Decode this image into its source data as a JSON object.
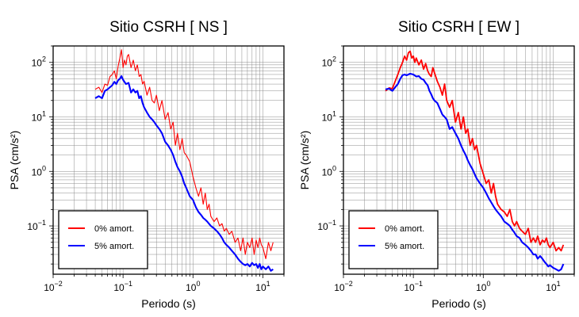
{
  "chart_data": [
    {
      "type": "line",
      "title": "Sitio CSRH [ NS ]",
      "xlabel": "Periodo (s)",
      "ylabel": "PSA (cm/s²)",
      "xscale": "log",
      "yscale": "log",
      "xlim": [
        0.01,
        20
      ],
      "ylim": [
        0.013,
        200
      ],
      "x_ticks": [
        {
          "value": 0.01,
          "base": "10",
          "exp": "−2"
        },
        {
          "value": 0.1,
          "base": "10",
          "exp": "−1"
        },
        {
          "value": 1,
          "base": "10",
          "exp": "0"
        },
        {
          "value": 10,
          "base": "10",
          "exp": "1"
        }
      ],
      "y_ticks": [
        {
          "value": 0.1,
          "base": "10",
          "exp": "−1"
        },
        {
          "value": 1,
          "base": "10",
          "exp": "0"
        },
        {
          "value": 10,
          "base": "10",
          "exp": "1"
        },
        {
          "value": 100,
          "base": "10",
          "exp": "2"
        }
      ],
      "grid": true,
      "legend_position": "bottom-left",
      "series": [
        {
          "name": "0% amort.",
          "color": "#ff0000",
          "x": [
            0.04,
            0.045,
            0.05,
            0.055,
            0.06,
            0.065,
            0.07,
            0.075,
            0.08,
            0.085,
            0.09,
            0.095,
            0.1,
            0.105,
            0.11,
            0.115,
            0.12,
            0.13,
            0.14,
            0.15,
            0.16,
            0.17,
            0.18,
            0.19,
            0.2,
            0.22,
            0.24,
            0.26,
            0.28,
            0.3,
            0.33,
            0.36,
            0.4,
            0.44,
            0.48,
            0.52,
            0.56,
            0.6,
            0.65,
            0.7,
            0.75,
            0.8,
            0.9,
            1.0,
            1.1,
            1.2,
            1.3,
            1.4,
            1.5,
            1.6,
            1.7,
            1.8,
            2.0,
            2.2,
            2.4,
            2.6,
            2.8,
            3.0,
            3.3,
            3.6,
            4.0,
            4.4,
            4.8,
            5.2,
            5.6,
            6.0,
            6.5,
            7.0,
            7.5,
            8.0,
            8.5,
            9.0,
            9.5,
            10.0,
            11.0,
            12.0,
            13.0,
            14.0
          ],
          "y": [
            32,
            35,
            28,
            40,
            38,
            55,
            60,
            70,
            50,
            85,
            120,
            170,
            80,
            110,
            90,
            130,
            140,
            80,
            110,
            70,
            90,
            55,
            60,
            40,
            45,
            25,
            35,
            20,
            18,
            25,
            13,
            20,
            9,
            12,
            6,
            8,
            3,
            5,
            2.5,
            4,
            2.2,
            2.0,
            1.5,
            0.8,
            0.5,
            0.35,
            0.5,
            0.25,
            0.4,
            0.2,
            0.25,
            0.15,
            0.12,
            0.14,
            0.1,
            0.11,
            0.08,
            0.09,
            0.07,
            0.08,
            0.05,
            0.06,
            0.035,
            0.06,
            0.03,
            0.05,
            0.04,
            0.06,
            0.03,
            0.055,
            0.04,
            0.06,
            0.045,
            0.04,
            0.025,
            0.05,
            0.035,
            0.05
          ]
        },
        {
          "name": "5% amort.",
          "color": "#0000ff",
          "x": [
            0.04,
            0.045,
            0.05,
            0.055,
            0.06,
            0.065,
            0.07,
            0.075,
            0.08,
            0.085,
            0.09,
            0.095,
            0.1,
            0.11,
            0.12,
            0.13,
            0.14,
            0.15,
            0.16,
            0.17,
            0.18,
            0.19,
            0.2,
            0.22,
            0.24,
            0.26,
            0.28,
            0.3,
            0.33,
            0.36,
            0.4,
            0.44,
            0.48,
            0.52,
            0.56,
            0.6,
            0.65,
            0.7,
            0.75,
            0.8,
            0.9,
            1.0,
            1.1,
            1.2,
            1.3,
            1.4,
            1.5,
            1.6,
            1.8,
            2.0,
            2.2,
            2.4,
            2.6,
            2.8,
            3.0,
            3.3,
            3.6,
            4.0,
            4.4,
            4.8,
            5.2,
            5.6,
            6.0,
            6.5,
            7.0,
            7.5,
            8.0,
            8.5,
            9.0,
            9.5,
            10.0,
            11.0,
            12.0,
            13.0,
            14.0
          ],
          "y": [
            22,
            24,
            22,
            30,
            32,
            35,
            38,
            44,
            40,
            47,
            50,
            56,
            48,
            40,
            42,
            28,
            32,
            28,
            30,
            22,
            24,
            18,
            15,
            12,
            10,
            9,
            8,
            7,
            6,
            5,
            3.5,
            3,
            2.5,
            2.0,
            1.5,
            1.2,
            1.0,
            0.8,
            0.6,
            0.5,
            0.35,
            0.3,
            0.22,
            0.18,
            0.16,
            0.14,
            0.13,
            0.12,
            0.1,
            0.09,
            0.08,
            0.07,
            0.06,
            0.05,
            0.045,
            0.04,
            0.035,
            0.03,
            0.025,
            0.022,
            0.02,
            0.019,
            0.02,
            0.018,
            0.021,
            0.019,
            0.02,
            0.017,
            0.02,
            0.016,
            0.018,
            0.016,
            0.018,
            0.015,
            0.016
          ]
        }
      ]
    },
    {
      "type": "line",
      "title": "Sitio CSRH [ EW ]",
      "xlabel": "Periodo (s)",
      "ylabel": "PSA (cm/s²)",
      "xscale": "log",
      "yscale": "log",
      "xlim": [
        0.01,
        20
      ],
      "ylim": [
        0.013,
        200
      ],
      "x_ticks": [
        {
          "value": 0.01,
          "base": "10",
          "exp": "−2"
        },
        {
          "value": 0.1,
          "base": "10",
          "exp": "−1"
        },
        {
          "value": 1,
          "base": "10",
          "exp": "0"
        },
        {
          "value": 10,
          "base": "10",
          "exp": "1"
        }
      ],
      "y_ticks": [
        {
          "value": 0.1,
          "base": "10",
          "exp": "−1"
        },
        {
          "value": 1,
          "base": "10",
          "exp": "0"
        },
        {
          "value": 10,
          "base": "10",
          "exp": "1"
        },
        {
          "value": 100,
          "base": "10",
          "exp": "2"
        }
      ],
      "grid": true,
      "legend_position": "bottom-left",
      "series": [
        {
          "name": "0% amort.",
          "color": "#ff0000",
          "x": [
            0.04,
            0.045,
            0.05,
            0.055,
            0.06,
            0.065,
            0.07,
            0.075,
            0.08,
            0.085,
            0.09,
            0.095,
            0.1,
            0.105,
            0.11,
            0.12,
            0.13,
            0.14,
            0.15,
            0.16,
            0.17,
            0.18,
            0.19,
            0.2,
            0.22,
            0.24,
            0.26,
            0.28,
            0.3,
            0.33,
            0.36,
            0.4,
            0.44,
            0.48,
            0.52,
            0.56,
            0.6,
            0.65,
            0.7,
            0.75,
            0.8,
            0.9,
            1.0,
            1.1,
            1.2,
            1.3,
            1.4,
            1.5,
            1.6,
            1.8,
            2.0,
            2.2,
            2.4,
            2.6,
            2.8,
            3.0,
            3.3,
            3.6,
            4.0,
            4.4,
            4.8,
            5.2,
            5.6,
            6.0,
            6.5,
            7.0,
            7.5,
            8.0,
            8.5,
            9.0,
            10.0,
            11.0,
            12.0,
            13.0,
            14.0
          ],
          "y": [
            30,
            34,
            33,
            45,
            60,
            80,
            100,
            130,
            110,
            150,
            160,
            120,
            130,
            100,
            120,
            90,
            110,
            75,
            95,
            70,
            60,
            55,
            80,
            65,
            45,
            35,
            25,
            40,
            20,
            15,
            20,
            8,
            12,
            6,
            10,
            5,
            6,
            3,
            4,
            2.5,
            3,
            1.4,
            0.9,
            0.6,
            0.7,
            0.4,
            0.6,
            0.35,
            0.25,
            0.2,
            0.18,
            0.15,
            0.2,
            0.12,
            0.1,
            0.12,
            0.09,
            0.08,
            0.07,
            0.09,
            0.05,
            0.06,
            0.05,
            0.065,
            0.045,
            0.055,
            0.05,
            0.06,
            0.045,
            0.04,
            0.05,
            0.035,
            0.04,
            0.035,
            0.045
          ]
        },
        {
          "name": "5% amort.",
          "color": "#0000ff",
          "x": [
            0.04,
            0.045,
            0.05,
            0.055,
            0.06,
            0.065,
            0.07,
            0.075,
            0.08,
            0.09,
            0.1,
            0.11,
            0.12,
            0.13,
            0.14,
            0.15,
            0.16,
            0.17,
            0.18,
            0.19,
            0.2,
            0.22,
            0.24,
            0.26,
            0.28,
            0.3,
            0.33,
            0.36,
            0.4,
            0.44,
            0.48,
            0.52,
            0.56,
            0.6,
            0.65,
            0.7,
            0.75,
            0.8,
            0.9,
            1.0,
            1.1,
            1.2,
            1.3,
            1.4,
            1.5,
            1.6,
            1.8,
            2.0,
            2.2,
            2.4,
            2.6,
            2.8,
            3.0,
            3.3,
            3.6,
            4.0,
            4.4,
            4.8,
            5.2,
            5.6,
            6.0,
            6.5,
            7.0,
            7.5,
            8.0,
            8.5,
            9.0,
            10.0,
            11.0,
            12.0,
            13.0,
            14.0
          ],
          "y": [
            32,
            33,
            30,
            35,
            40,
            50,
            58,
            60,
            58,
            62,
            60,
            55,
            56,
            50,
            48,
            42,
            38,
            30,
            26,
            22,
            20,
            18,
            14,
            11,
            10,
            9,
            6,
            6.5,
            5,
            4,
            3,
            2.4,
            2,
            1.6,
            1.3,
            1.1,
            0.9,
            0.75,
            0.6,
            0.5,
            0.4,
            0.32,
            0.27,
            0.23,
            0.2,
            0.18,
            0.15,
            0.12,
            0.11,
            0.1,
            0.085,
            0.075,
            0.065,
            0.06,
            0.05,
            0.045,
            0.04,
            0.035,
            0.03,
            0.03,
            0.025,
            0.028,
            0.025,
            0.022,
            0.02,
            0.018,
            0.019,
            0.017,
            0.016,
            0.015,
            0.016,
            0.02
          ]
        }
      ]
    }
  ]
}
